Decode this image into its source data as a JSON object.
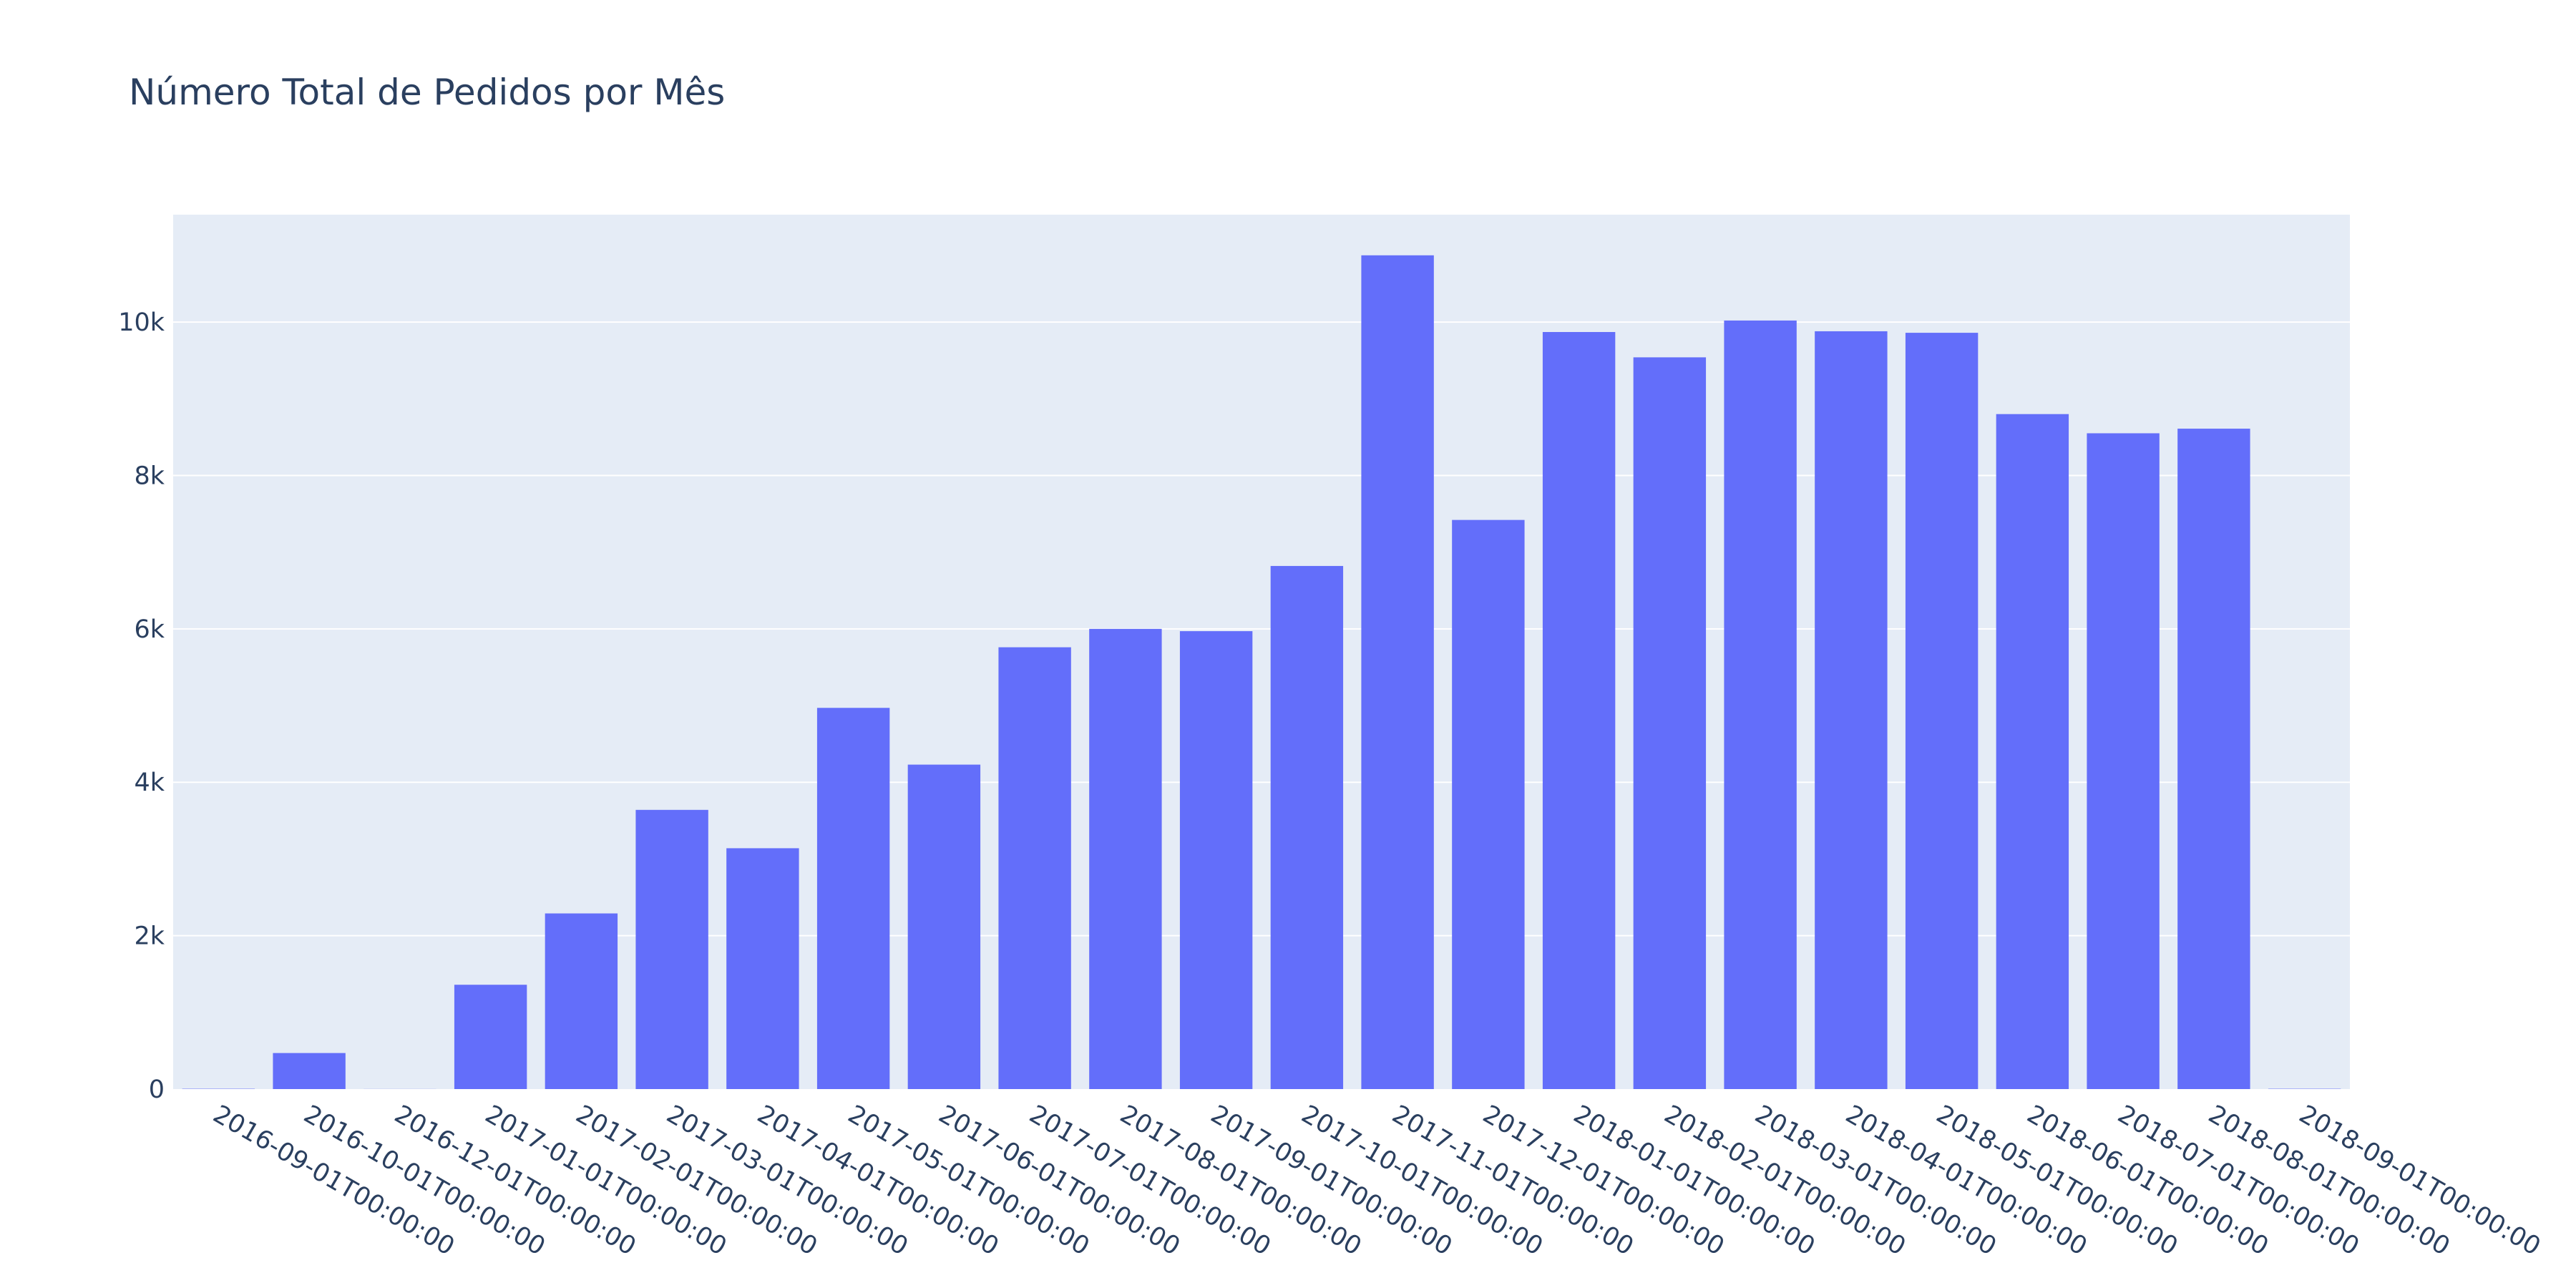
{
  "chart_data": {
    "type": "bar",
    "title": "Número Total de Pedidos por Mês",
    "xlabel": "",
    "ylabel": "",
    "categories": [
      "2016-09-01T00:00:00",
      "2016-10-01T00:00:00",
      "2016-12-01T00:00:00",
      "2017-01-01T00:00:00",
      "2017-02-01T00:00:00",
      "2017-03-01T00:00:00",
      "2017-04-01T00:00:00",
      "2017-05-01T00:00:00",
      "2017-06-01T00:00:00",
      "2017-07-01T00:00:00",
      "2017-08-01T00:00:00",
      "2017-09-01T00:00:00",
      "2017-10-01T00:00:00",
      "2017-11-01T00:00:00",
      "2017-12-01T00:00:00",
      "2018-01-01T00:00:00",
      "2018-02-01T00:00:00",
      "2018-03-01T00:00:00",
      "2018-04-01T00:00:00",
      "2018-05-01T00:00:00",
      "2018-06-01T00:00:00",
      "2018-07-01T00:00:00",
      "2018-08-01T00:00:00",
      "2018-09-01T00:00:00"
    ],
    "values": [
      4,
      470,
      1,
      1360,
      2290,
      3640,
      3140,
      4970,
      4230,
      5760,
      6000,
      5970,
      6820,
      10870,
      7420,
      9870,
      9540,
      10020,
      9880,
      9860,
      8800,
      8550,
      8610,
      4
    ],
    "ylim": [
      0,
      11400
    ],
    "yticks": [
      0,
      2000,
      4000,
      6000,
      8000,
      10000
    ],
    "ytick_labels": [
      "0",
      "2k",
      "4k",
      "6k",
      "8k",
      "10k"
    ],
    "grid": true,
    "colors": {
      "bar": "#636efa",
      "plot_bg": "#e5ecf6",
      "grid": "#ffffff",
      "text": "#2a3f5f"
    }
  }
}
